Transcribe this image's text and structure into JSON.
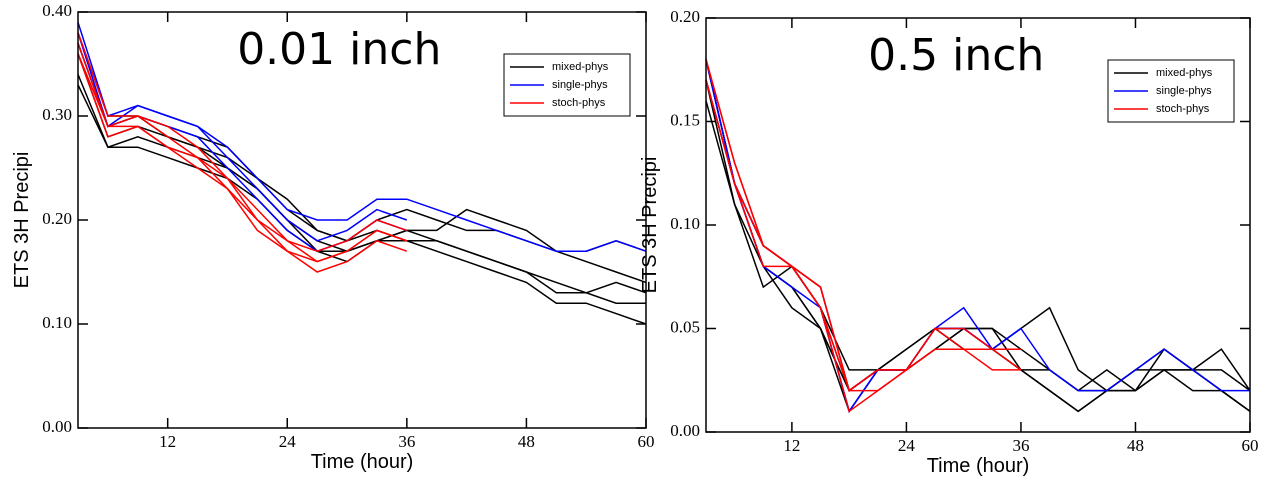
{
  "chart_data": [
    {
      "type": "line",
      "title": "0.01 inch",
      "x_label": "Time (hour)",
      "y_label": "ETS 3H Precipi",
      "x": [
        3,
        6,
        9,
        12,
        15,
        18,
        21,
        24,
        27,
        30,
        33,
        36,
        39,
        42,
        45,
        48,
        51,
        54,
        57,
        60
      ],
      "xlim": [
        3,
        60
      ],
      "xticks": [
        12,
        24,
        36,
        48,
        60
      ],
      "ylim": [
        0,
        0.4
      ],
      "yticks": [
        {
          "value": 0,
          "label": "0.00"
        },
        {
          "value": 0.1,
          "label": "0.10"
        },
        {
          "value": 0.2,
          "label": "0.20"
        },
        {
          "value": 0.3,
          "label": "0.30"
        },
        {
          "value": 0.4,
          "label": "0.40"
        }
      ],
      "legend": "upper right",
      "series": [
        {
          "name": "mixed-phys",
          "color": "#000000",
          "lines": [
            [
              0.34,
              0.27,
              0.27,
              0.26,
              0.25,
              0.24,
              0.22,
              0.19,
              0.17,
              0.17,
              0.18,
              0.18,
              0.17,
              0.16,
              0.15,
              0.14,
              0.12,
              0.12,
              0.11,
              0.1
            ],
            [
              0.33,
              0.27,
              0.28,
              0.27,
              0.26,
              0.25,
              0.23,
              0.2,
              0.18,
              0.17,
              0.18,
              0.19,
              0.19,
              0.21,
              0.2,
              0.19,
              0.17,
              0.17,
              0.18,
              0.17
            ],
            [
              0.37,
              0.29,
              0.3,
              0.28,
              0.27,
              0.26,
              0.24,
              0.21,
              0.19,
              0.18,
              0.19,
              0.18,
              0.18,
              0.17,
              0.16,
              0.15,
              0.14,
              0.13,
              0.14,
              0.13
            ],
            [
              0.36,
              0.28,
              0.29,
              0.28,
              0.27,
              0.25,
              0.23,
              0.2,
              0.17,
              0.16,
              0.18,
              0.19,
              0.18,
              0.17,
              0.16,
              0.15,
              0.13,
              0.13,
              0.12,
              0.12
            ],
            [
              0.38,
              0.3,
              0.3,
              0.29,
              0.28,
              0.27,
              0.24,
              0.22,
              0.19,
              0.18,
              0.2,
              0.21,
              0.2,
              0.19,
              0.19,
              0.18,
              0.17,
              0.16,
              0.15,
              0.14
            ]
          ]
        },
        {
          "name": "single-phys",
          "color": "#0000ff",
          "lines": [
            [
              0.39,
              0.3,
              0.31,
              0.3,
              0.29,
              0.27,
              0.24,
              0.21,
              0.2,
              0.2,
              0.22,
              0.22,
              0.21,
              0.2,
              0.19,
              0.18,
              0.17,
              0.17,
              0.18,
              0.17
            ],
            [
              0.38,
              0.29,
              0.31,
              0.3,
              0.29,
              0.26,
              0.23,
              0.2,
              0.18,
              0.19,
              0.21,
              0.2,
              null,
              null,
              null,
              null,
              null,
              null,
              null,
              null
            ],
            [
              0.37,
              0.29,
              0.3,
              0.29,
              0.28,
              0.25,
              0.22,
              0.19,
              0.17,
              0.18,
              0.2,
              0.19,
              null,
              null,
              null,
              null,
              null,
              null,
              null,
              null
            ]
          ]
        },
        {
          "name": "stoch-phys",
          "color": "#ff0000",
          "lines": [
            [
              0.37,
              0.29,
              0.3,
              0.28,
              0.26,
              0.24,
              0.2,
              0.18,
              0.16,
              0.17,
              0.19,
              0.18,
              null,
              null,
              null,
              null,
              null,
              null,
              null,
              null
            ],
            [
              0.36,
              0.29,
              0.29,
              0.27,
              0.25,
              0.23,
              0.19,
              0.17,
              0.15,
              0.16,
              0.18,
              0.17,
              null,
              null,
              null,
              null,
              null,
              null,
              null,
              null
            ],
            [
              0.38,
              0.3,
              0.3,
              0.29,
              0.27,
              0.24,
              0.21,
              0.18,
              0.17,
              0.18,
              0.2,
              0.19,
              null,
              null,
              null,
              null,
              null,
              null,
              null,
              null
            ],
            [
              0.36,
              0.28,
              0.29,
              0.27,
              0.26,
              0.23,
              0.2,
              0.17,
              0.16,
              0.17,
              0.19,
              0.18,
              null,
              null,
              null,
              null,
              null,
              null,
              null,
              null
            ]
          ]
        }
      ]
    },
    {
      "type": "line",
      "title": "0.5 inch",
      "x_label": "Time (hour)",
      "y_label": "ETS 3H Precipi",
      "x": [
        3,
        6,
        9,
        12,
        15,
        18,
        21,
        24,
        27,
        30,
        33,
        36,
        39,
        42,
        45,
        48,
        51,
        54,
        57,
        60
      ],
      "xlim": [
        3,
        60
      ],
      "xticks": [
        12,
        24,
        36,
        48,
        60
      ],
      "ylim": [
        0,
        0.2
      ],
      "yticks": [
        {
          "value": 0,
          "label": "0.00"
        },
        {
          "value": 0.05,
          "label": "0.05"
        },
        {
          "value": 0.1,
          "label": "0.10"
        },
        {
          "value": 0.15,
          "label": "0.15"
        },
        {
          "value": 0.2,
          "label": "0.20"
        }
      ],
      "legend": "upper right",
      "series": [
        {
          "name": "mixed-phys",
          "color": "#000000",
          "lines": [
            [
              0.17,
              0.12,
              0.08,
              0.07,
              0.05,
              0.02,
              0.03,
              0.04,
              0.05,
              0.04,
              0.04,
              0.03,
              0.02,
              0.01,
              0.02,
              0.03,
              0.04,
              0.03,
              0.02,
              0.01
            ],
            [
              0.16,
              0.11,
              0.07,
              0.08,
              0.06,
              0.02,
              0.03,
              0.03,
              0.05,
              0.05,
              0.04,
              0.05,
              0.06,
              0.03,
              0.02,
              0.02,
              0.03,
              0.03,
              0.03,
              0.02
            ],
            [
              0.18,
              0.12,
              0.08,
              0.06,
              0.05,
              0.02,
              0.03,
              0.03,
              0.04,
              0.05,
              0.05,
              0.03,
              0.02,
              0.01,
              0.02,
              0.02,
              0.04,
              0.03,
              0.04,
              0.02
            ],
            [
              0.17,
              0.11,
              0.08,
              0.07,
              0.05,
              0.01,
              0.03,
              0.04,
              0.05,
              0.04,
              0.04,
              0.03,
              0.03,
              0.02,
              0.03,
              0.02,
              0.03,
              0.02,
              0.02,
              0.01
            ],
            [
              0.18,
              0.12,
              0.09,
              0.08,
              0.06,
              0.03,
              0.03,
              0.03,
              0.04,
              0.05,
              0.05,
              0.04,
              0.03,
              0.02,
              0.02,
              0.03,
              0.03,
              0.03,
              0.02,
              0.01
            ]
          ]
        },
        {
          "name": "single-phys",
          "color": "#0000ff",
          "lines": [
            [
              0.18,
              0.12,
              0.09,
              0.08,
              0.06,
              0.01,
              0.03,
              0.03,
              0.05,
              0.06,
              0.04,
              0.05,
              0.03,
              0.02,
              0.02,
              0.03,
              0.04,
              0.03,
              0.02,
              0.02
            ],
            [
              0.18,
              0.12,
              0.09,
              0.08,
              0.07,
              0.02,
              0.03,
              0.03,
              0.05,
              0.05,
              0.04,
              0.05,
              null,
              null,
              null,
              null,
              null,
              null,
              null,
              null
            ],
            [
              0.17,
              0.12,
              0.08,
              0.07,
              0.06,
              0.01,
              0.03,
              0.03,
              0.05,
              0.05,
              0.04,
              0.04,
              null,
              null,
              null,
              null,
              null,
              null,
              null,
              null
            ]
          ]
        },
        {
          "name": "stoch-phys",
          "color": "#ff0000",
          "lines": [
            [
              0.18,
              0.13,
              0.09,
              0.08,
              0.07,
              0.02,
              0.03,
              0.03,
              0.05,
              0.04,
              0.04,
              0.04,
              null,
              null,
              null,
              null,
              null,
              null,
              null,
              null
            ],
            [
              0.17,
              0.12,
              0.09,
              0.08,
              0.06,
              0.01,
              0.02,
              0.03,
              0.04,
              0.04,
              0.04,
              0.03,
              null,
              null,
              null,
              null,
              null,
              null,
              null,
              null
            ],
            [
              0.18,
              0.13,
              0.09,
              0.08,
              0.07,
              0.02,
              0.03,
              0.03,
              0.05,
              0.05,
              0.04,
              0.04,
              null,
              null,
              null,
              null,
              null,
              null,
              null,
              null
            ],
            [
              0.17,
              0.12,
              0.08,
              0.08,
              0.06,
              0.02,
              0.02,
              0.03,
              0.04,
              0.04,
              0.03,
              0.03,
              null,
              null,
              null,
              null,
              null,
              null,
              null,
              null
            ]
          ]
        }
      ]
    }
  ]
}
